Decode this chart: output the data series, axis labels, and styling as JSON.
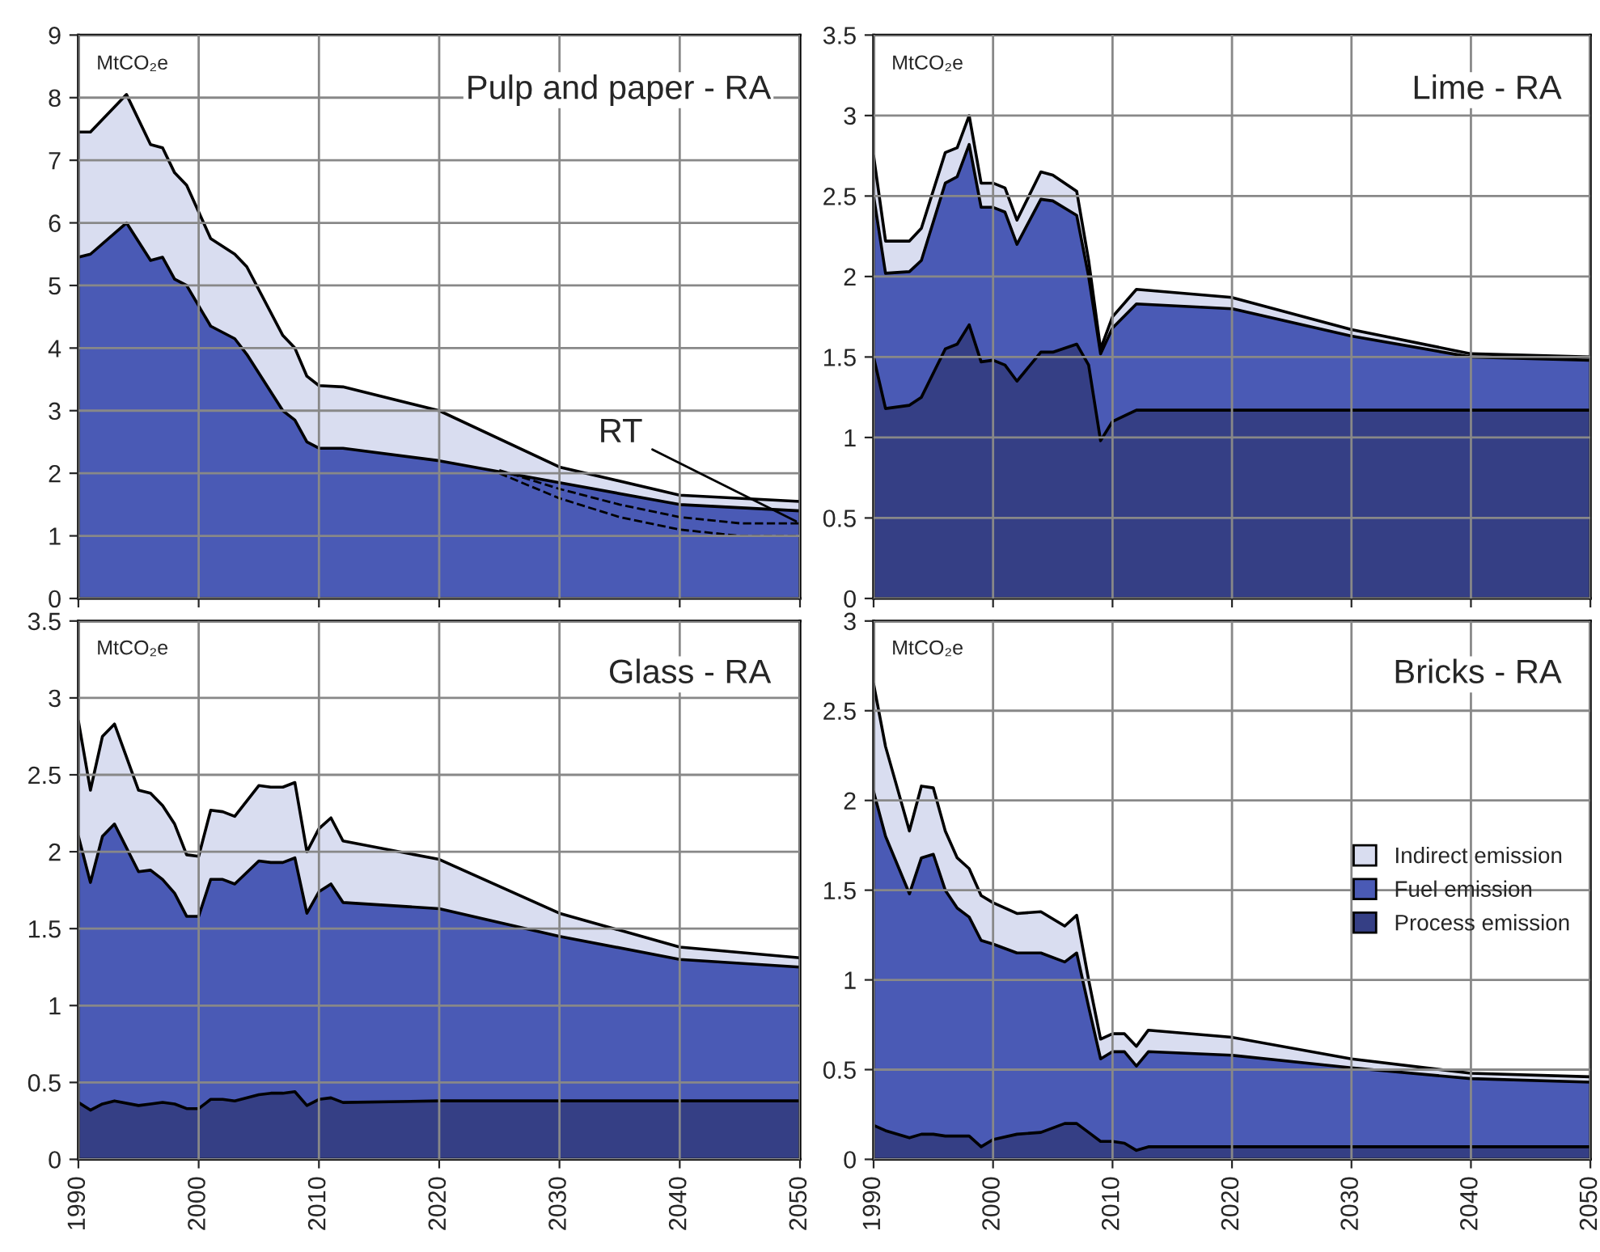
{
  "chart_data": [
    {
      "type": "area",
      "title": "Pulp and paper - RA",
      "stacked": true,
      "grid": true,
      "tick_labels": "y",
      "legend": false,
      "annotations": [
        "MtCO₂e",
        {
          "text": "RT",
          "x": 2050,
          "y": 1.2
        }
      ],
      "x": [
        1990,
        1991,
        1994,
        1996,
        1997,
        1998,
        1999,
        2001,
        2003,
        2004,
        2007,
        2008,
        2009,
        2010,
        2012,
        2020,
        2030,
        2040,
        2050
      ],
      "xlim": [
        1990,
        2050
      ],
      "xticks": [
        1990,
        2000,
        2010,
        2020,
        2030,
        2040,
        2050
      ],
      "ylim": [
        0,
        9
      ],
      "yticks": [
        0,
        1,
        2,
        3,
        4,
        5,
        6,
        7,
        8,
        9
      ],
      "series": [
        {
          "color": "#4a5ab5",
          "values": [
            5.45,
            5.5,
            6.0,
            5.4,
            5.45,
            5.1,
            5.0,
            4.35,
            4.15,
            3.9,
            3.0,
            2.85,
            2.5,
            2.4,
            2.4,
            2.2,
            1.85,
            1.5,
            1.4
          ]
        },
        {
          "color": "#d9ddf0",
          "values": [
            2.0,
            1.95,
            2.05,
            1.85,
            1.75,
            1.7,
            1.6,
            1.4,
            1.35,
            1.4,
            1.2,
            1.15,
            1.05,
            1.0,
            0.98,
            0.8,
            0.25,
            0.15,
            0.15
          ]
        },
        {
          "type": "line",
          "line_style": "dashed",
          "color": "#000000",
          "x": [
            2025,
            2030,
            2035,
            2040,
            2045,
            2050
          ],
          "values": [
            2.05,
            1.75,
            1.5,
            1.3,
            1.2,
            1.2
          ]
        },
        {
          "type": "line",
          "line_style": "dashed",
          "color": "#000000",
          "x": [
            2025,
            2030,
            2035,
            2040,
            2045,
            2050
          ],
          "values": [
            2.0,
            1.6,
            1.3,
            1.1,
            1.0,
            1.0
          ]
        }
      ]
    },
    {
      "type": "area",
      "title": "Lime - RA",
      "stacked": true,
      "grid": true,
      "tick_labels": "y",
      "legend": false,
      "annotations": [
        "MtCO₂e"
      ],
      "x": [
        1990,
        1991,
        1993,
        1994,
        1996,
        1997,
        1998,
        1999,
        2000,
        2001,
        2002,
        2004,
        2005,
        2007,
        2008,
        2009,
        2010,
        2012,
        2020,
        2030,
        2040,
        2050
      ],
      "xlim": [
        1990,
        2050
      ],
      "xticks": [
        1990,
        2000,
        2010,
        2020,
        2030,
        2040,
        2050
      ],
      "ylim": [
        0,
        3.5
      ],
      "yticks": [
        0,
        0.5,
        1,
        1.5,
        2,
        2.5,
        3,
        3.5
      ],
      "series": [
        {
          "color": "#353f85",
          "values": [
            1.5,
            1.18,
            1.2,
            1.25,
            1.55,
            1.58,
            1.7,
            1.47,
            1.48,
            1.45,
            1.35,
            1.53,
            1.53,
            1.58,
            1.45,
            0.98,
            1.1,
            1.17,
            1.17,
            1.17,
            1.17,
            1.17
          ]
        },
        {
          "color": "#4a5ab5",
          "values": [
            1.0,
            0.84,
            0.83,
            0.85,
            1.03,
            1.04,
            1.12,
            0.96,
            0.95,
            0.95,
            0.85,
            0.95,
            0.94,
            0.8,
            0.55,
            0.54,
            0.58,
            0.66,
            0.63,
            0.46,
            0.33,
            0.31
          ]
        },
        {
          "color": "#d9ddf0",
          "values": [
            0.25,
            0.2,
            0.19,
            0.2,
            0.19,
            0.18,
            0.18,
            0.15,
            0.15,
            0.15,
            0.15,
            0.17,
            0.16,
            0.15,
            0.1,
            0.03,
            0.07,
            0.09,
            0.07,
            0.04,
            0.02,
            0.02
          ]
        }
      ]
    },
    {
      "type": "area",
      "title": "Glass - RA",
      "stacked": true,
      "grid": true,
      "legend": false,
      "annotations": [
        "MtCO₂e"
      ],
      "x": [
        1990,
        1991,
        1992,
        1993,
        1995,
        1996,
        1997,
        1998,
        1999,
        2000,
        2001,
        2002,
        2003,
        2005,
        2006,
        2007,
        2008,
        2009,
        2010,
        2011,
        2012,
        2020,
        2030,
        2040,
        2050
      ],
      "xlim": [
        1990,
        2050
      ],
      "xticks": [
        1990,
        2000,
        2010,
        2020,
        2030,
        2040,
        2050
      ],
      "ylim": [
        0,
        3.5
      ],
      "yticks": [
        0,
        0.5,
        1,
        1.5,
        2,
        2.5,
        3,
        3.5
      ],
      "series": [
        {
          "color": "#353f85",
          "values": [
            0.37,
            0.32,
            0.36,
            0.38,
            0.35,
            0.36,
            0.37,
            0.36,
            0.33,
            0.33,
            0.39,
            0.39,
            0.38,
            0.42,
            0.43,
            0.43,
            0.44,
            0.35,
            0.39,
            0.4,
            0.37,
            0.38,
            0.38,
            0.38,
            0.38
          ]
        },
        {
          "color": "#4a5ab5",
          "values": [
            1.73,
            1.48,
            1.74,
            1.8,
            1.52,
            1.52,
            1.45,
            1.37,
            1.25,
            1.25,
            1.43,
            1.43,
            1.41,
            1.52,
            1.5,
            1.5,
            1.52,
            1.25,
            1.35,
            1.39,
            1.3,
            1.25,
            1.07,
            0.92,
            0.87
          ]
        },
        {
          "color": "#d9ddf0",
          "values": [
            0.75,
            0.6,
            0.65,
            0.65,
            0.53,
            0.5,
            0.48,
            0.45,
            0.4,
            0.39,
            0.45,
            0.44,
            0.44,
            0.49,
            0.49,
            0.49,
            0.49,
            0.4,
            0.41,
            0.43,
            0.4,
            0.32,
            0.15,
            0.08,
            0.06
          ]
        }
      ]
    },
    {
      "type": "area",
      "title": "Bricks - RA",
      "stacked": true,
      "grid": true,
      "legend": "right",
      "annotations": [
        "MtCO₂e"
      ],
      "x": [
        1990,
        1991,
        1993,
        1994,
        1995,
        1996,
        1997,
        1998,
        1999,
        2000,
        2002,
        2004,
        2006,
        2007,
        2008,
        2009,
        2010,
        2011,
        2012,
        2013,
        2020,
        2030,
        2040,
        2050
      ],
      "xlim": [
        1990,
        2050
      ],
      "xticks": [
        1990,
        2000,
        2010,
        2020,
        2030,
        2040,
        2050
      ],
      "ylim": [
        0,
        3
      ],
      "yticks": [
        0,
        0.5,
        1,
        1.5,
        2,
        2.5,
        3
      ],
      "series": [
        {
          "name": "Process emission",
          "color": "#353f85",
          "values": [
            0.19,
            0.16,
            0.12,
            0.14,
            0.14,
            0.13,
            0.13,
            0.13,
            0.07,
            0.11,
            0.14,
            0.15,
            0.2,
            0.2,
            0.15,
            0.1,
            0.1,
            0.09,
            0.05,
            0.07,
            0.07,
            0.07,
            0.07,
            0.07
          ]
        },
        {
          "name": "Fuel emission",
          "color": "#4a5ab5",
          "values": [
            1.86,
            1.64,
            1.36,
            1.54,
            1.56,
            1.37,
            1.27,
            1.22,
            1.15,
            1.09,
            1.01,
            1.0,
            0.9,
            0.95,
            0.7,
            0.46,
            0.5,
            0.51,
            0.47,
            0.53,
            0.51,
            0.44,
            0.38,
            0.36
          ]
        },
        {
          "name": "Indirect emission",
          "color": "#d9ddf0",
          "values": [
            0.6,
            0.5,
            0.35,
            0.4,
            0.37,
            0.33,
            0.28,
            0.27,
            0.25,
            0.23,
            0.22,
            0.23,
            0.2,
            0.21,
            0.15,
            0.11,
            0.1,
            0.1,
            0.11,
            0.12,
            0.1,
            0.05,
            0.03,
            0.03
          ]
        }
      ]
    }
  ]
}
